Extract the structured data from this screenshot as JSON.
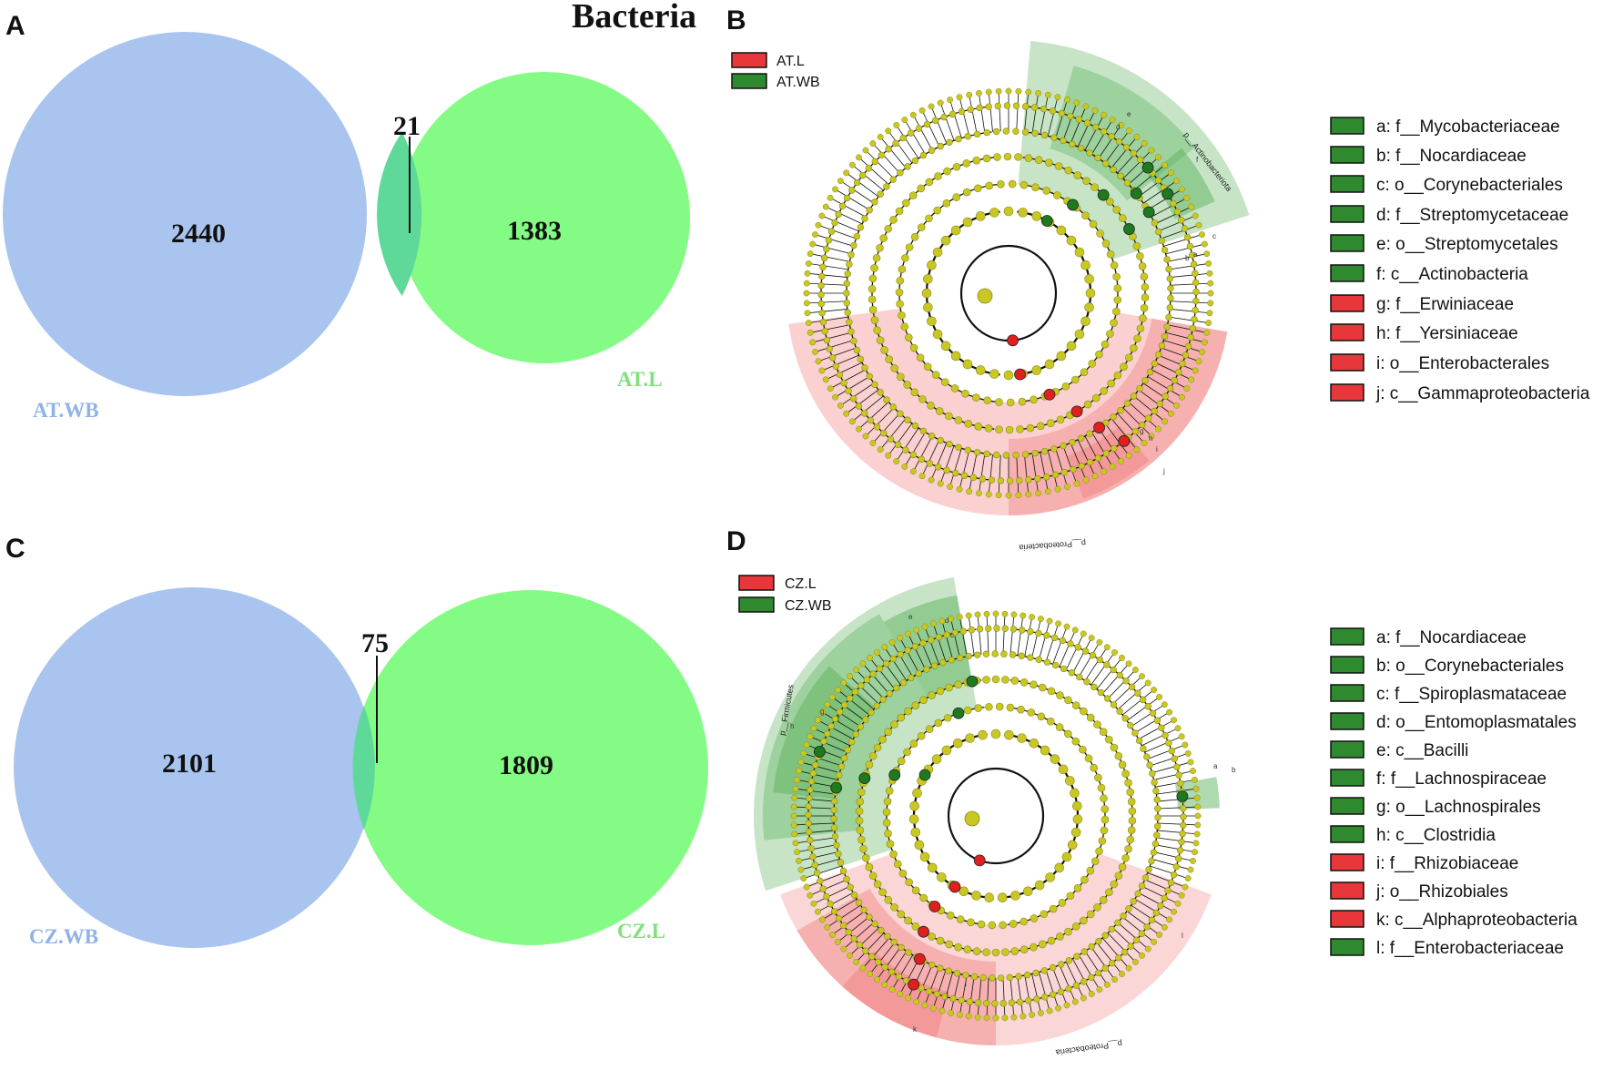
{
  "title": "Bacteria",
  "panels": {
    "A": {
      "letter": "A",
      "venn": {
        "left_set": {
          "label": "AT.WB",
          "unique": "2440",
          "color": "#a9c4ef"
        },
        "right_set": {
          "label": "AT.L",
          "unique": "1383",
          "color": "#84fb84"
        },
        "shared": "21",
        "label_color_left": "#8fb2ea",
        "label_color_right": "#7ee07e"
      }
    },
    "B": {
      "letter": "B",
      "group_legend": [
        {
          "label": "AT.L",
          "color": "#e8373a"
        },
        {
          "label": "AT.WB",
          "color": "#2f8a2f"
        }
      ],
      "phylum_labels": [
        "p__Actinobacteriota",
        "p__Proteobacteria"
      ],
      "clade_letters": [
        "a",
        "b",
        "c",
        "d",
        "e",
        "f",
        "g",
        "h",
        "i",
        "j"
      ],
      "legend": [
        {
          "text": "a: f__Mycobacteriaceae",
          "group": "AT.WB"
        },
        {
          "text": "b: f__Nocardiaceae",
          "group": "AT.WB"
        },
        {
          "text": "c: o__Corynebacteriales",
          "group": "AT.WB"
        },
        {
          "text": "d: f__Streptomycetaceae",
          "group": "AT.WB"
        },
        {
          "text": "e: o__Streptomycetales",
          "group": "AT.WB"
        },
        {
          "text": "f: c__Actinobacteria",
          "group": "AT.WB"
        },
        {
          "text": "g: f__Erwiniaceae",
          "group": "AT.L"
        },
        {
          "text": "h: f__Yersiniaceae",
          "group": "AT.L"
        },
        {
          "text": "i: o__Enterobacterales",
          "group": "AT.L"
        },
        {
          "text": "j: c__Gammaproteobacteria",
          "group": "AT.L"
        }
      ]
    },
    "C": {
      "letter": "C",
      "venn": {
        "left_set": {
          "label": "CZ.WB",
          "unique": "2101",
          "color": "#a9c4ef"
        },
        "right_set": {
          "label": "CZ.L",
          "unique": "1809",
          "color": "#84fb84"
        },
        "shared": "75",
        "label_color_left": "#8fb2ea",
        "label_color_right": "#7ee07e"
      }
    },
    "D": {
      "letter": "D",
      "group_legend": [
        {
          "label": "CZ.L",
          "color": "#e8373a"
        },
        {
          "label": "CZ.WB",
          "color": "#2f8a2f"
        }
      ],
      "phylum_labels": [
        "p__Firmicutes",
        "p__Proteobacteria"
      ],
      "clade_letters": [
        "a",
        "b",
        "c",
        "d",
        "e",
        "f",
        "g",
        "h",
        "i",
        "j",
        "k",
        "l"
      ],
      "legend": [
        {
          "text": "a: f__Nocardiaceae",
          "group": "CZ.WB"
        },
        {
          "text": "b: o__Corynebacteriales",
          "group": "CZ.WB"
        },
        {
          "text": "c: f__Spiroplasmataceae",
          "group": "CZ.WB"
        },
        {
          "text": "d: o__Entomoplasmatales",
          "group": "CZ.WB"
        },
        {
          "text": "e: c__Bacilli",
          "group": "CZ.WB"
        },
        {
          "text": "f: f__Lachnospiraceae",
          "group": "CZ.WB"
        },
        {
          "text": "g: o__Lachnospirales",
          "group": "CZ.WB"
        },
        {
          "text": "h: c__Clostridia",
          "group": "CZ.WB"
        },
        {
          "text": "i: f__Rhizobiaceae",
          "group": "CZ.L"
        },
        {
          "text": "j: o__Rhizobiales",
          "group": "CZ.L"
        },
        {
          "text": "k: c__Alphaproteobacteria",
          "group": "CZ.L"
        },
        {
          "text": "l: f__Enterobacteriaceae",
          "group": "CZ.WB"
        }
      ]
    }
  },
  "colors": {
    "node": "#c9c724",
    "node_stroke": "#8a8a10",
    "wb_dark": "#1e7a1e",
    "l_dark": "#e01f1f",
    "green_shade": "#5fb35f",
    "red_shade": "#f28a8a"
  }
}
